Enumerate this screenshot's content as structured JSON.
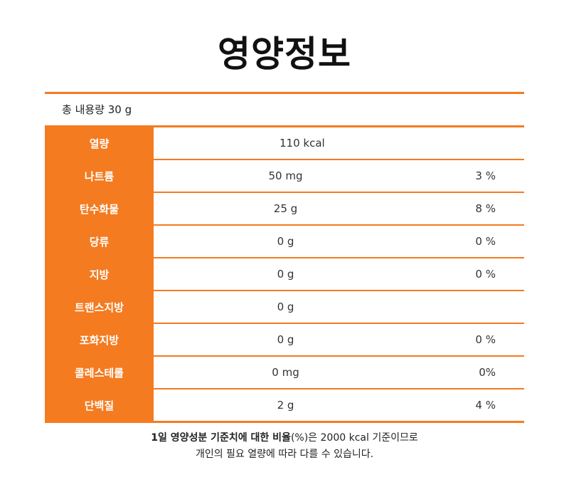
{
  "title": "영양정보",
  "total_label": "총 내용량 30 g",
  "accent_color": "#f47b20",
  "rows": [
    {
      "label": "열량",
      "amount": "110 kcal",
      "percent": ""
    },
    {
      "label": "나트륨",
      "amount": "50 mg",
      "percent": "3 %"
    },
    {
      "label": "탄수화물",
      "amount": "25 g",
      "percent": "8 %"
    },
    {
      "label": "당류",
      "amount": "0 g",
      "percent": "0 %"
    },
    {
      "label": "지방",
      "amount": "0 g",
      "percent": "0 %"
    },
    {
      "label": "트랜스지방",
      "amount": "0 g",
      "percent": ""
    },
    {
      "label": "포화지방",
      "amount": "0 g",
      "percent": "0 %"
    },
    {
      "label": "콜레스테롤",
      "amount": "0 mg",
      "percent": "0%"
    },
    {
      "label": "단백질",
      "amount": "2 g",
      "percent": "4 %"
    }
  ],
  "footnote": {
    "bold": "1일 영양성분 기준치에 대한 비율",
    "line1_rest": "(%)은 2000 kcal 기준이므로",
    "line2": "개인의 필요 열량에 따라 다를 수 있습니다."
  }
}
